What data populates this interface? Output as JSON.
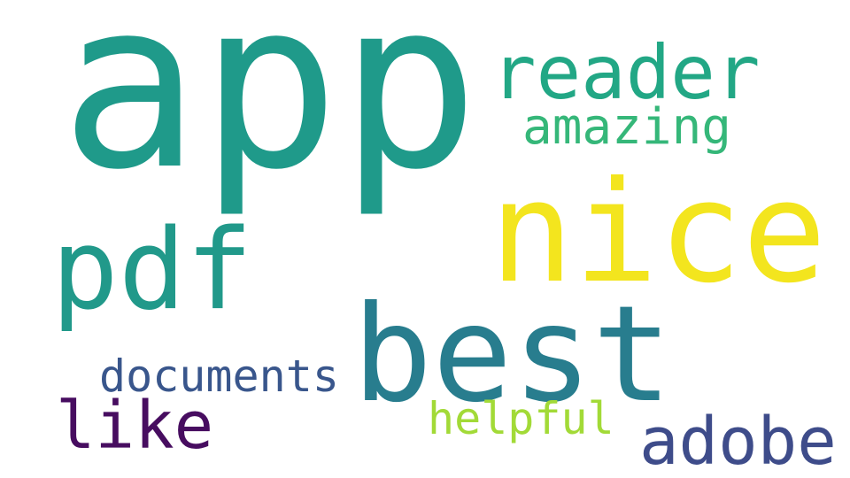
{
  "background": "#ffffff",
  "words": [
    {
      "id": "app",
      "text": "app",
      "color": "#1f9a8a"
    },
    {
      "id": "reader",
      "text": "reader",
      "color": "#22a785"
    },
    {
      "id": "amazing",
      "text": "amazing",
      "color": "#35b779"
    },
    {
      "id": "nice",
      "text": "nice",
      "color": "#f3e51e"
    },
    {
      "id": "pdf",
      "text": "pdf",
      "color": "#21998a"
    },
    {
      "id": "best",
      "text": "best",
      "color": "#287d8e"
    },
    {
      "id": "documents",
      "text": "documents",
      "color": "#39568c"
    },
    {
      "id": "like",
      "text": "like",
      "color": "#470d60"
    },
    {
      "id": "helpful",
      "text": "helpful",
      "color": "#a2da37"
    },
    {
      "id": "adobe",
      "text": "adobe",
      "color": "#3e4c8a"
    }
  ]
}
